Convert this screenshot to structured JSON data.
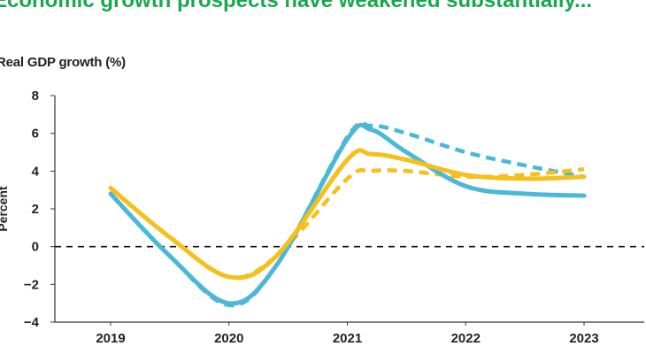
{
  "chart_data": {
    "type": "line",
    "title": "Economic growth prospects have weakened substantially...",
    "subtitle": "Real GDP growth (%)",
    "ylabel": "Percent",
    "xlabel": "",
    "ylim": [
      -4,
      8
    ],
    "yticks": [
      "8",
      "6",
      "4",
      "2",
      "0",
      "−2",
      "−4"
    ],
    "x_categories": [
      "2019",
      "2020",
      "2021",
      "2022",
      "2023"
    ],
    "series": [
      {
        "name": "series-blue-solid",
        "color": "#4bb8d8",
        "dash": "solid",
        "x": [
          2019,
          2019.5,
          2020,
          2020.4,
          2021,
          2021.2,
          2021.5,
          2022,
          2022.5,
          2023
        ],
        "values": [
          2.8,
          -0.5,
          -3.0,
          -1.0,
          5.7,
          6.2,
          5.0,
          3.2,
          2.8,
          2.7
        ]
      },
      {
        "name": "series-blue-dashed",
        "color": "#4bb8d8",
        "dash": "dashed",
        "x": [
          2019,
          2019.5,
          2020,
          2020.4,
          2021,
          2021.2,
          2021.5,
          2022,
          2022.5,
          2023
        ],
        "values": [
          2.8,
          -0.5,
          -3.1,
          -1.0,
          5.8,
          6.4,
          6.0,
          5.0,
          4.3,
          3.7
        ]
      },
      {
        "name": "series-yellow-solid",
        "color": "#f5c01c",
        "dash": "solid",
        "x": [
          2019,
          2019.5,
          2020,
          2020.4,
          2021,
          2021.2,
          2021.5,
          2022,
          2022.5,
          2023
        ],
        "values": [
          3.1,
          0.5,
          -1.6,
          -0.5,
          4.6,
          4.9,
          4.6,
          3.8,
          3.6,
          3.7
        ]
      },
      {
        "name": "series-yellow-dashed",
        "color": "#f5c01c",
        "dash": "dashed",
        "x": [
          2019,
          2019.5,
          2020,
          2020.4,
          2021,
          2021.2,
          2021.5,
          2022,
          2022.5,
          2023
        ],
        "values": [
          3.1,
          0.5,
          -1.6,
          -0.5,
          3.6,
          4.0,
          4.0,
          3.7,
          3.8,
          4.1
        ]
      }
    ]
  }
}
